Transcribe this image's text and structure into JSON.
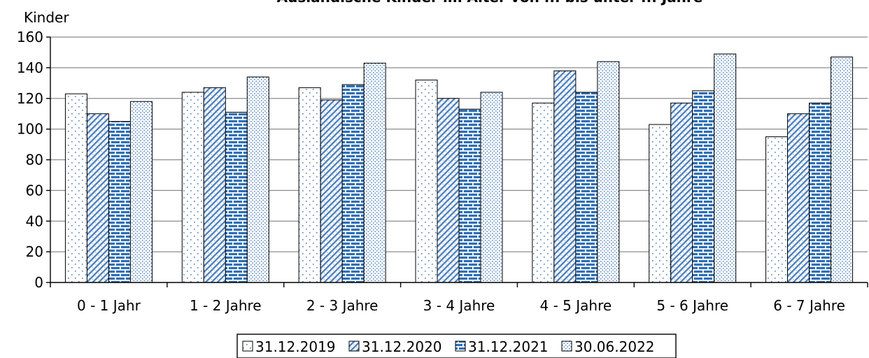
{
  "chart_data": {
    "type": "bar",
    "title": "Ausländische Kinder im Alter von ... bis unter ... Jahre",
    "ylabel": "Kinder",
    "xlabel": "",
    "ylim": [
      0,
      160
    ],
    "yticks": [
      0,
      20,
      40,
      60,
      80,
      100,
      120,
      140,
      160
    ],
    "grid": true,
    "legend": "bottom",
    "categories": [
      "0 - 1 Jahr",
      "1 - 2 Jahre",
      "2 - 3 Jahre",
      "3 - 4 Jahre",
      "4 - 5 Jahre",
      "5 - 6 Jahre",
      "6 - 7 Jahre"
    ],
    "series": [
      {
        "name": "31.12.2019",
        "values": [
          123,
          124,
          127,
          132,
          117,
          103,
          95
        ],
        "pattern": "sparse-dots",
        "color": "#4f81bd"
      },
      {
        "name": "31.12.2020",
        "values": [
          110,
          127,
          119,
          120,
          138,
          117,
          110
        ],
        "pattern": "diagonal-hatch",
        "color": "#4f81bd"
      },
      {
        "name": "31.12.2021",
        "values": [
          105,
          111,
          129,
          113,
          124,
          125,
          117
        ],
        "pattern": "brick",
        "color": "#2e6fb5"
      },
      {
        "name": "30.06.2022",
        "values": [
          118,
          134,
          143,
          124,
          144,
          149,
          147
        ],
        "pattern": "dense-dots",
        "color": "#4f81bd"
      }
    ]
  }
}
